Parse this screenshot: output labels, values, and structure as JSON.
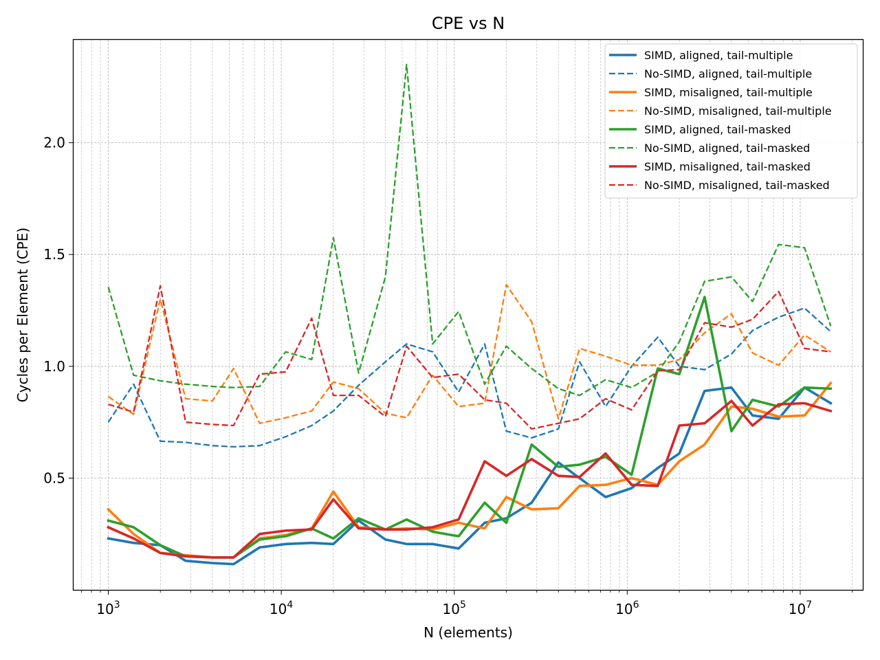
{
  "chart_data": {
    "type": "line",
    "title": "CPE vs N",
    "xlabel": "N (elements)",
    "ylabel": "Cycles per Element (CPE)",
    "xscale": "log",
    "xlim": [
      630,
      23000000
    ],
    "ylim": [
      0.0,
      2.46
    ],
    "grid": true,
    "legend_position": "top-right",
    "x_ticks": [
      {
        "value": 1000,
        "base": "10",
        "exp": "3"
      },
      {
        "value": 10000,
        "base": "10",
        "exp": "4"
      },
      {
        "value": 100000,
        "base": "10",
        "exp": "5"
      },
      {
        "value": 1000000,
        "base": "10",
        "exp": "6"
      },
      {
        "value": 10000000,
        "base": "10",
        "exp": "7"
      }
    ],
    "y_ticks": [
      {
        "value": 0.5,
        "label": "0.5"
      },
      {
        "value": 1.0,
        "label": "1.0"
      },
      {
        "value": 1.5,
        "label": "1.5"
      },
      {
        "value": 2.0,
        "label": "2.0"
      }
    ],
    "x": [
      1000,
      1400,
      2000,
      2800,
      4000,
      5300,
      7500,
      10600,
      15000,
      20000,
      28000,
      40000,
      53000,
      75000,
      106000,
      150000,
      200000,
      280000,
      400000,
      530000,
      750000,
      1060000,
      1500000,
      2000000,
      2800000,
      4000000,
      5300000,
      7500000,
      10600000,
      15000000
    ],
    "series": [
      {
        "name": "SIMD, aligned, tail-multiple",
        "color": "#1f77b4",
        "style": "solid",
        "values": [
          0.23,
          0.21,
          0.2,
          0.13,
          0.12,
          0.115,
          0.19,
          0.205,
          0.21,
          0.205,
          0.31,
          0.225,
          0.205,
          0.205,
          0.185,
          0.3,
          0.32,
          0.39,
          0.57,
          0.5,
          0.415,
          0.455,
          0.545,
          0.61,
          0.89,
          0.905,
          0.78,
          0.765,
          0.905,
          0.835
        ]
      },
      {
        "name": "No-SIMD, aligned, tail-multiple",
        "color": "#1f77b4",
        "style": "dashed",
        "values": [
          0.75,
          0.92,
          0.665,
          0.66,
          0.645,
          0.64,
          0.645,
          0.685,
          0.735,
          0.8,
          0.915,
          1.02,
          1.1,
          1.065,
          0.885,
          1.1,
          0.71,
          0.68,
          0.72,
          1.02,
          0.82,
          1.0,
          1.13,
          1.0,
          0.985,
          1.055,
          1.16,
          1.22,
          1.26,
          1.155
        ]
      },
      {
        "name": "SIMD, misaligned, tail-multiple",
        "color": "#ff7f0e",
        "style": "solid",
        "values": [
          0.36,
          0.25,
          0.165,
          0.155,
          0.145,
          0.145,
          0.23,
          0.245,
          0.275,
          0.44,
          0.28,
          0.27,
          0.275,
          0.27,
          0.3,
          0.275,
          0.415,
          0.36,
          0.365,
          0.465,
          0.47,
          0.5,
          0.47,
          0.575,
          0.65,
          0.82,
          0.81,
          0.775,
          0.78,
          0.925
        ]
      },
      {
        "name": "No-SIMD, misaligned, tail-multiple",
        "color": "#ff7f0e",
        "style": "dashed",
        "values": [
          0.865,
          0.785,
          1.3,
          0.855,
          0.845,
          0.99,
          0.745,
          0.77,
          0.8,
          0.93,
          0.9,
          0.79,
          0.77,
          0.96,
          0.82,
          0.835,
          1.365,
          1.2,
          0.765,
          1.08,
          1.045,
          1.005,
          1.005,
          1.03,
          1.15,
          1.235,
          1.06,
          1.005,
          1.14,
          1.065
        ]
      },
      {
        "name": "SIMD, aligned, tail-masked",
        "color": "#2ca02c",
        "style": "solid",
        "values": [
          0.31,
          0.28,
          0.2,
          0.15,
          0.145,
          0.145,
          0.225,
          0.24,
          0.275,
          0.23,
          0.32,
          0.27,
          0.315,
          0.26,
          0.24,
          0.39,
          0.3,
          0.65,
          0.55,
          0.56,
          0.595,
          0.515,
          0.99,
          0.965,
          1.31,
          0.71,
          0.85,
          0.82,
          0.905,
          0.9
        ]
      },
      {
        "name": "No-SIMD, aligned, tail-masked",
        "color": "#2ca02c",
        "style": "dashed",
        "values": [
          1.355,
          0.96,
          0.935,
          0.92,
          0.91,
          0.905,
          0.91,
          1.065,
          1.03,
          1.575,
          0.97,
          1.4,
          2.35,
          1.1,
          1.245,
          0.92,
          1.09,
          0.99,
          0.9,
          0.87,
          0.94,
          0.905,
          0.975,
          1.11,
          1.38,
          1.4,
          1.29,
          1.545,
          1.53,
          1.18
        ]
      },
      {
        "name": "SIMD, misaligned, tail-masked",
        "color": "#d62728",
        "style": "solid",
        "values": [
          0.28,
          0.23,
          0.165,
          0.15,
          0.145,
          0.145,
          0.25,
          0.265,
          0.27,
          0.405,
          0.275,
          0.27,
          0.27,
          0.28,
          0.315,
          0.575,
          0.51,
          0.585,
          0.51,
          0.505,
          0.61,
          0.47,
          0.465,
          0.735,
          0.745,
          0.845,
          0.735,
          0.83,
          0.835,
          0.8
        ]
      },
      {
        "name": "No-SIMD, misaligned, tail-masked",
        "color": "#d62728",
        "style": "dashed",
        "values": [
          0.83,
          0.795,
          1.36,
          0.75,
          0.74,
          0.735,
          0.965,
          0.975,
          1.215,
          0.87,
          0.87,
          0.775,
          1.09,
          0.95,
          0.965,
          0.85,
          0.835,
          0.72,
          0.745,
          0.765,
          0.855,
          0.805,
          0.98,
          0.985,
          1.195,
          1.175,
          1.21,
          1.335,
          1.08,
          1.065
        ]
      }
    ]
  }
}
